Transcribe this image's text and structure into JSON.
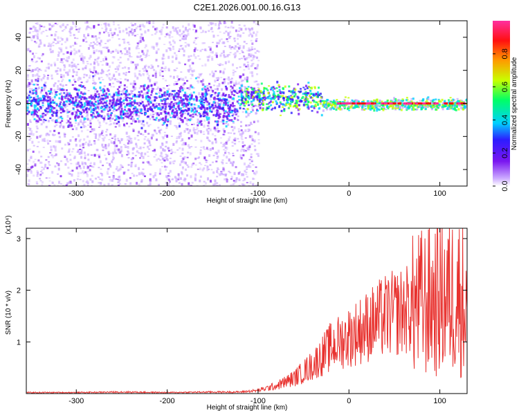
{
  "title": "C2E1.2026.001.00.16.G13",
  "colors": {
    "snr_line": "#e8312e",
    "spectrogram_scale": [
      "#ffffff",
      "#c9a6ff",
      "#7a16f0",
      "#2d1cff",
      "#00cfff",
      "#00ff66",
      "#c8ff00",
      "#ff9a00",
      "#ff1010",
      "#ff2fa0"
    ]
  },
  "chart_data": [
    {
      "type": "heatmap",
      "xlabel": "Height of straight line (km)",
      "ylabel": "Frequency (Hz)",
      "xlim": [
        -355,
        130
      ],
      "ylim": [
        -50,
        50
      ],
      "xticks": [
        -300,
        -200,
        -100,
        0,
        100
      ],
      "yticks": [
        -40,
        -20,
        0,
        20,
        40
      ],
      "colorbar": {
        "label": "Normalized spectral amplitude",
        "range": [
          0,
          1
        ],
        "ticks": [
          "0.0",
          "0.2",
          "0.4",
          "0.6",
          "0.8"
        ]
      },
      "description_points": {
        "signal_band_center_hz": 0,
        "noisy_region_x": [
          -355,
          -100
        ],
        "clean_region_x": [
          -100,
          130
        ]
      }
    },
    {
      "type": "line",
      "xlabel": "Height of straight line (km)",
      "ylabel": "SNR (10 * v/v)",
      "scale_note": "(x10⁴)",
      "xlim": [
        -355,
        130
      ],
      "ylim": [
        0,
        3.2
      ],
      "xticks": [
        -300,
        -200,
        -100,
        0,
        100
      ],
      "yticks": [
        1,
        2,
        3
      ],
      "series": [
        {
          "x": [
            -355,
            -300,
            -250,
            -200,
            -150,
            -120,
            -100,
            -80,
            -60,
            -40,
            -20,
            -10,
            0,
            20,
            40,
            60,
            80,
            90,
            100,
            110,
            120,
            130
          ],
          "y": [
            0.02,
            0.02,
            0.03,
            0.02,
            0.03,
            0.03,
            0.06,
            0.15,
            0.3,
            0.55,
            0.9,
            1.0,
            1.1,
            1.3,
            1.5,
            1.6,
            1.75,
            1.8,
            1.85,
            1.9,
            1.95,
            1.7
          ]
        }
      ]
    }
  ]
}
